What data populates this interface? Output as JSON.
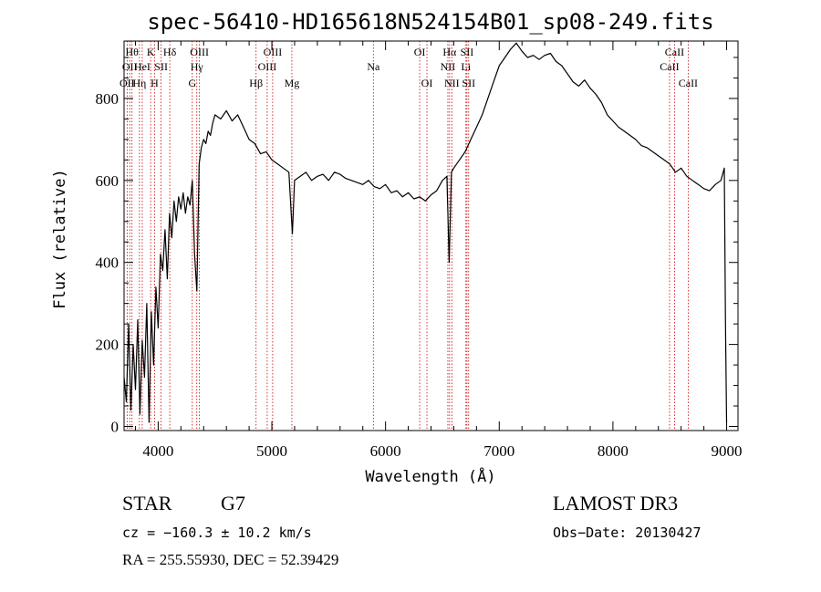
{
  "chart_data": {
    "type": "line",
    "title": "spec-56410-HD165618N524154B01_sp08-249.fits",
    "xlabel": "Wavelength (Å)",
    "ylabel": "Flux (relative)",
    "xlim": [
      3700,
      9100
    ],
    "ylim": [
      -10,
      940
    ],
    "x_ticks": [
      4000,
      5000,
      6000,
      7000,
      8000,
      9000
    ],
    "y_ticks": [
      0,
      200,
      400,
      600,
      800
    ],
    "series": [
      {
        "x": [
          3700,
          3720,
          3740,
          3760,
          3780,
          3800,
          3820,
          3840,
          3860,
          3880,
          3900,
          3920,
          3940,
          3960,
          3980,
          4000,
          4020,
          4040,
          4060,
          4080,
          4100,
          4120,
          4140,
          4160,
          4180,
          4200,
          4220,
          4240,
          4260,
          4280,
          4300,
          4320,
          4340,
          4360,
          4380,
          4400,
          4420,
          4440,
          4460,
          4480,
          4500,
          4550,
          4600,
          4650,
          4700,
          4750,
          4800,
          4850,
          4900,
          4950,
          5000,
          5050,
          5100,
          5150,
          5180,
          5200,
          5250,
          5300,
          5350,
          5400,
          5450,
          5500,
          5550,
          5600,
          5650,
          5700,
          5750,
          5800,
          5850,
          5900,
          5950,
          6000,
          6050,
          6100,
          6150,
          6200,
          6250,
          6300,
          6350,
          6400,
          6450,
          6500,
          6540,
          6560,
          6580,
          6600,
          6650,
          6700,
          6750,
          6800,
          6850,
          6900,
          6950,
          7000,
          7050,
          7100,
          7150,
          7200,
          7250,
          7300,
          7350,
          7400,
          7450,
          7500,
          7550,
          7600,
          7650,
          7700,
          7750,
          7800,
          7850,
          7900,
          7950,
          8000,
          8050,
          8100,
          8150,
          8200,
          8250,
          8300,
          8350,
          8400,
          8450,
          8500,
          8550,
          8600,
          8650,
          8700,
          8750,
          8800,
          8850,
          8900,
          8950,
          8980,
          8990,
          9000
        ],
        "y": [
          120,
          60,
          250,
          40,
          200,
          90,
          260,
          30,
          210,
          120,
          300,
          10,
          280,
          150,
          340,
          240,
          420,
          380,
          480,
          360,
          520,
          460,
          550,
          500,
          560,
          530,
          570,
          520,
          560,
          540,
          600,
          420,
          330,
          640,
          680,
          700,
          690,
          720,
          710,
          740,
          760,
          750,
          770,
          745,
          760,
          730,
          700,
          690,
          665,
          670,
          650,
          640,
          630,
          620,
          470,
          600,
          610,
          620,
          600,
          610,
          615,
          600,
          620,
          615,
          605,
          600,
          595,
          590,
          600,
          585,
          580,
          590,
          570,
          575,
          560,
          570,
          555,
          560,
          550,
          565,
          575,
          600,
          610,
          400,
          620,
          630,
          650,
          670,
          700,
          730,
          760,
          800,
          840,
          880,
          900,
          920,
          935,
          915,
          900,
          905,
          895,
          905,
          910,
          890,
          880,
          860,
          840,
          830,
          845,
          825,
          810,
          790,
          760,
          745,
          730,
          720,
          710,
          700,
          685,
          680,
          670,
          660,
          650,
          640,
          620,
          630,
          610,
          600,
          590,
          580,
          575,
          590,
          600,
          630,
          250,
          10
        ]
      }
    ],
    "vertical_lines": [
      {
        "x": 3727,
        "label": "OII",
        "row": 3
      },
      {
        "x": 3750,
        "label": "OII",
        "row": 2
      },
      {
        "x": 3770,
        "label": "Hθ",
        "row": 1
      },
      {
        "x": 3835,
        "label": "Hη",
        "row": 3
      },
      {
        "x": 3860,
        "label": "HeI",
        "row": 2
      },
      {
        "x": 3934,
        "label": "K",
        "row": 1
      },
      {
        "x": 3968,
        "label": "H",
        "row": 3
      },
      {
        "x": 4026,
        "label": "SII",
        "row": 2
      },
      {
        "x": 4102,
        "label": "Hδ",
        "row": 1
      },
      {
        "x": 4300,
        "label": "G",
        "row": 3
      },
      {
        "x": 4340,
        "label": "Hγ",
        "row": 2
      },
      {
        "x": 4363,
        "label": "OIII",
        "row": 1
      },
      {
        "x": 4861,
        "label": "Hβ",
        "row": 3
      },
      {
        "x": 4959,
        "label": "OIII",
        "row": 2
      },
      {
        "x": 5007,
        "label": "OIII",
        "row": 1
      },
      {
        "x": 5176,
        "label": "Mg",
        "row": 3
      },
      {
        "x": 5893,
        "label": "Na",
        "row": 2
      },
      {
        "x": 6300,
        "label": "OI",
        "row": 1
      },
      {
        "x": 6364,
        "label": "OI",
        "row": 3
      },
      {
        "x": 6548,
        "label": "NII",
        "row": 2
      },
      {
        "x": 6563,
        "label": "Hα",
        "row": 1
      },
      {
        "x": 6583,
        "label": "NII",
        "row": 3
      },
      {
        "x": 6707,
        "label": "Li",
        "row": 2
      },
      {
        "x": 6716,
        "label": "SII",
        "row": 1
      },
      {
        "x": 6731,
        "label": "SII",
        "row": 3
      },
      {
        "x": 8498,
        "label": "CaII",
        "row": 2
      },
      {
        "x": 8542,
        "label": "CaII",
        "row": 1
      },
      {
        "x": 8662,
        "label": "CaII",
        "row": 3
      }
    ],
    "grid": false,
    "colors": {
      "line": "#000000",
      "markers": "#cc0000",
      "axes": "#000000",
      "background": "#ffffff"
    }
  },
  "info": {
    "object_class": "STAR",
    "subclass": "G7",
    "survey": "LAMOST DR3",
    "cz": "cz = −160.3 ± 10.2 km/s",
    "obs_date": "Obs−Date: 20130427",
    "coords": "RA = 255.55930, DEC =  52.39429"
  }
}
